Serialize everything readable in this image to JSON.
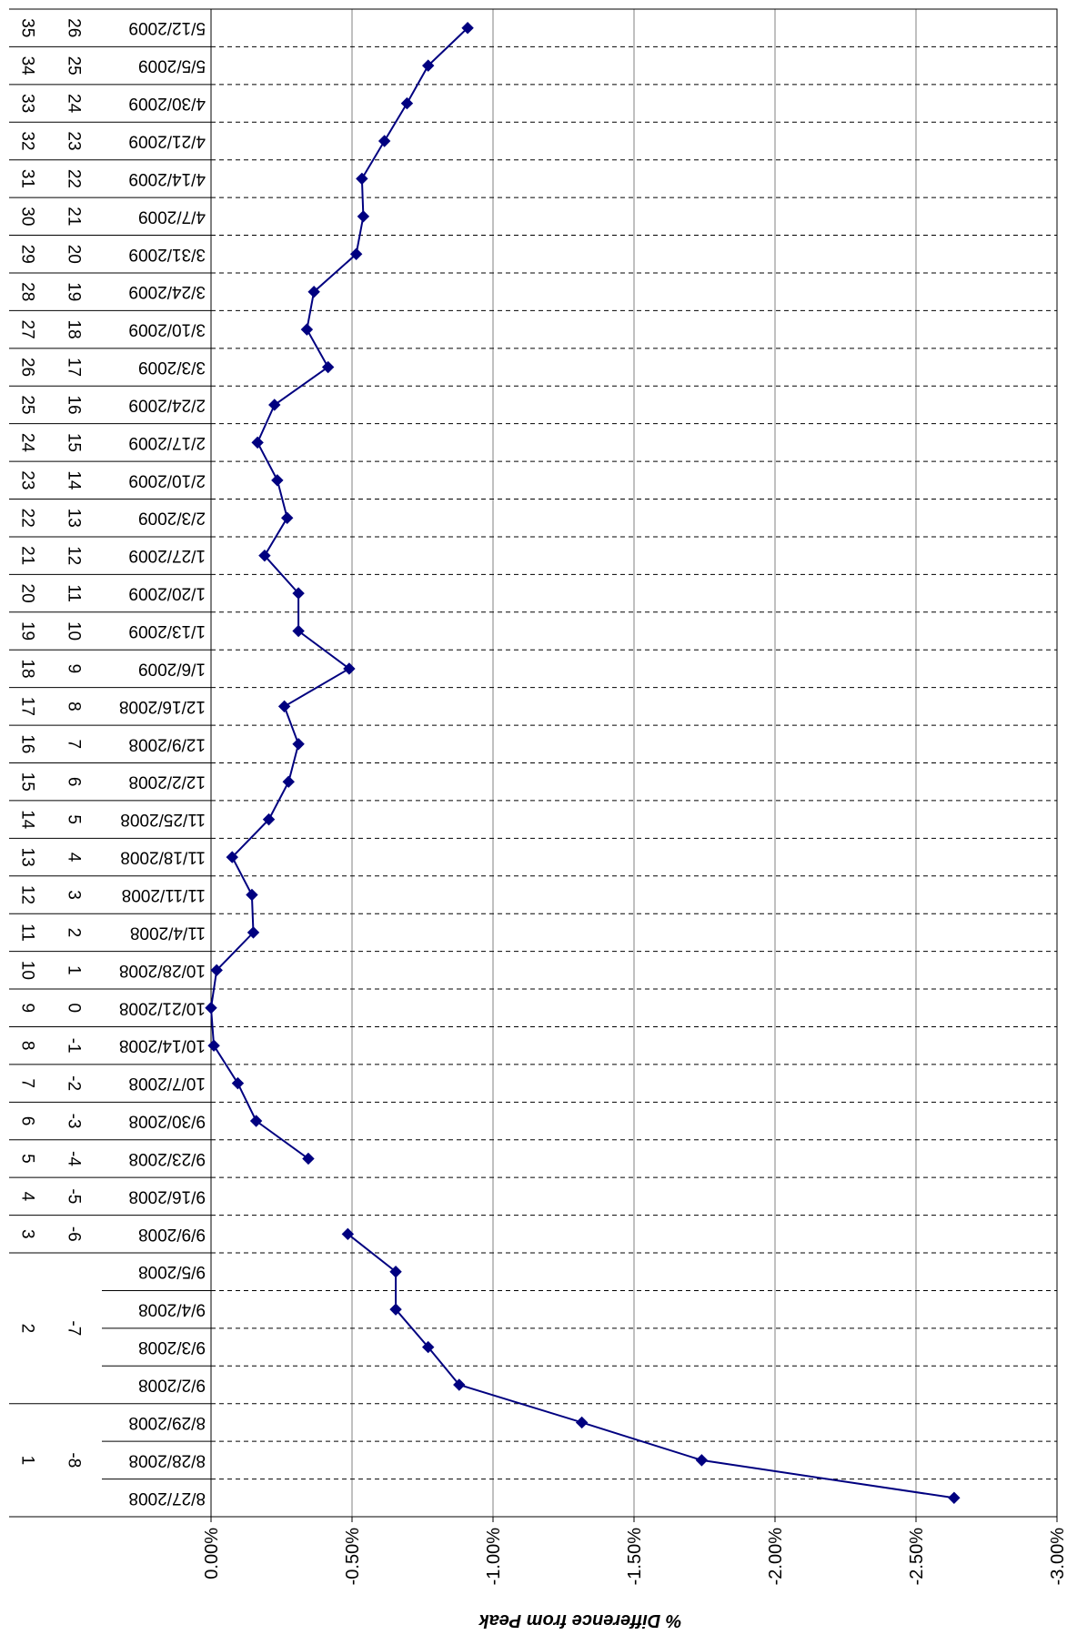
{
  "chart_data": {
    "type": "line",
    "orientation": "rotated-180",
    "title": "",
    "ylabel": "% Difference from Peak",
    "ylim": [
      0,
      -0.03
    ],
    "yticks": [
      "0.00%",
      "-0.50%",
      "-1.00%",
      "-1.50%",
      "-2.00%",
      "-2.50%",
      "-3.00%"
    ],
    "ytick_values": [
      0,
      -0.005,
      -0.01,
      -0.015,
      -0.02,
      -0.025,
      -0.03
    ],
    "grid": true,
    "legend": "none",
    "series_color": "#000080",
    "dates": [
      "8/27/2008",
      "8/28/2008",
      "8/29/2008",
      "9/2/2008",
      "9/3/2008",
      "9/4/2008",
      "9/5/2008",
      "9/9/2008",
      "9/16/2008",
      "9/23/2008",
      "9/30/2008",
      "10/7/2008",
      "10/14/2008",
      "10/21/2008",
      "10/28/2008",
      "11/4/2008",
      "11/11/2008",
      "11/18/2008",
      "11/25/2008",
      "12/2/2008",
      "12/9/2008",
      "12/16/2008",
      "1/6/2009",
      "1/13/2009",
      "1/20/2009",
      "1/27/2009",
      "2/3/2009",
      "2/10/2009",
      "2/17/2009",
      "2/24/2009",
      "3/3/2009",
      "3/10/2009",
      "3/24/2009",
      "3/31/2009",
      "4/7/2009",
      "4/14/2009",
      "4/21/2009",
      "4/30/2009",
      "5/5/2009",
      "5/12/2009"
    ],
    "values": [
      -0.02635,
      -0.0174,
      -0.01315,
      -0.0088,
      -0.0077,
      -0.00655,
      -0.00655,
      -0.00485,
      null,
      -0.00345,
      -0.0016,
      -0.00095,
      -0.0001,
      0.0,
      -0.0002,
      -0.0015,
      -0.00145,
      -0.00075,
      -0.00205,
      -0.00275,
      -0.0031,
      -0.0026,
      -0.0049,
      -0.0031,
      -0.0031,
      -0.0019,
      -0.0027,
      -0.00235,
      -0.00165,
      -0.00225,
      -0.00415,
      -0.0034,
      -0.00365,
      -0.00515,
      -0.0054,
      -0.00535,
      -0.00615,
      -0.00695,
      -0.0077,
      -0.0091
    ],
    "week_groups": [
      {
        "label": "-8",
        "count": 3
      },
      {
        "label": "-7",
        "count": 4
      },
      {
        "label": "-6",
        "count": 1
      },
      {
        "label": "-5",
        "count": 1
      },
      {
        "label": "-4",
        "count": 1
      },
      {
        "label": "-3",
        "count": 1
      },
      {
        "label": "-2",
        "count": 1
      },
      {
        "label": "-1",
        "count": 1
      },
      {
        "label": "0",
        "count": 1
      },
      {
        "label": "1",
        "count": 1
      },
      {
        "label": "2",
        "count": 1
      },
      {
        "label": "3",
        "count": 1
      },
      {
        "label": "4",
        "count": 1
      },
      {
        "label": "5",
        "count": 1
      },
      {
        "label": "6",
        "count": 1
      },
      {
        "label": "7",
        "count": 1
      },
      {
        "label": "8",
        "count": 1
      },
      {
        "label": "9",
        "count": 1
      },
      {
        "label": "10",
        "count": 1
      },
      {
        "label": "11",
        "count": 1
      },
      {
        "label": "12",
        "count": 1
      },
      {
        "label": "13",
        "count": 1
      },
      {
        "label": "14",
        "count": 1
      },
      {
        "label": "15",
        "count": 1
      },
      {
        "label": "16",
        "count": 1
      },
      {
        "label": "17",
        "count": 1
      },
      {
        "label": "18",
        "count": 1
      },
      {
        "label": "19",
        "count": 1
      },
      {
        "label": "20",
        "count": 1
      },
      {
        "label": "21",
        "count": 1
      },
      {
        "label": "22",
        "count": 1
      },
      {
        "label": "23",
        "count": 1
      },
      {
        "label": "24",
        "count": 1
      },
      {
        "label": "25",
        "count": 1
      },
      {
        "label": "26",
        "count": 1
      }
    ],
    "seq_groups": [
      {
        "label": "1",
        "count": 3
      },
      {
        "label": "2",
        "count": 4
      },
      {
        "label": "3",
        "count": 1
      },
      {
        "label": "4",
        "count": 1
      },
      {
        "label": "5",
        "count": 1
      },
      {
        "label": "6",
        "count": 1
      },
      {
        "label": "7",
        "count": 1
      },
      {
        "label": "8",
        "count": 1
      },
      {
        "label": "9",
        "count": 1
      },
      {
        "label": "10",
        "count": 1
      },
      {
        "label": "11",
        "count": 1
      },
      {
        "label": "12",
        "count": 1
      },
      {
        "label": "13",
        "count": 1
      },
      {
        "label": "14",
        "count": 1
      },
      {
        "label": "15",
        "count": 1
      },
      {
        "label": "16",
        "count": 1
      },
      {
        "label": "17",
        "count": 1
      },
      {
        "label": "18",
        "count": 1
      },
      {
        "label": "19",
        "count": 1
      },
      {
        "label": "20",
        "count": 1
      },
      {
        "label": "21",
        "count": 1
      },
      {
        "label": "22",
        "count": 1
      },
      {
        "label": "23",
        "count": 1
      },
      {
        "label": "24",
        "count": 1
      },
      {
        "label": "25",
        "count": 1
      },
      {
        "label": "26",
        "count": 1
      },
      {
        "label": "27",
        "count": 1
      },
      {
        "label": "28",
        "count": 1
      },
      {
        "label": "29",
        "count": 1
      },
      {
        "label": "30",
        "count": 1
      },
      {
        "label": "31",
        "count": 1
      },
      {
        "label": "32",
        "count": 1
      },
      {
        "label": "33",
        "count": 1
      },
      {
        "label": "34",
        "count": 1
      },
      {
        "label": "35",
        "count": 1
      }
    ]
  }
}
